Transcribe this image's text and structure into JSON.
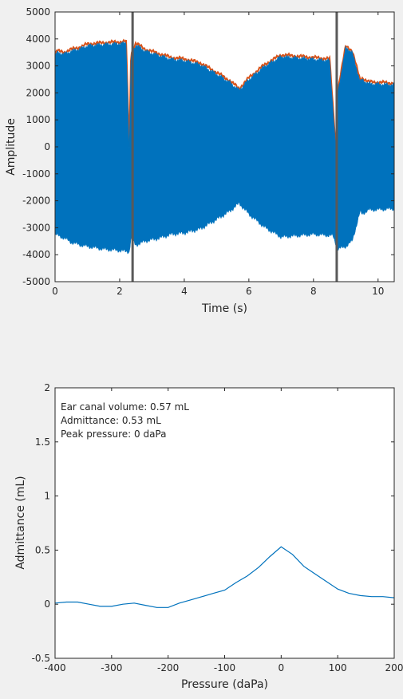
{
  "chart_data": [
    {
      "type": "line",
      "xlabel": "Time (s)",
      "ylabel": "Amplitude",
      "xlim": [
        0,
        10.5
      ],
      "ylim": [
        -5000,
        5000
      ],
      "xticks": [
        0,
        2,
        4,
        6,
        8,
        10
      ],
      "yticks": [
        -5000,
        -4000,
        -3000,
        -2000,
        -1000,
        0,
        1000,
        2000,
        3000,
        4000,
        5000
      ],
      "grid": false,
      "series": [
        {
          "color": "#D95319",
          "description": "envelope trace (orange)",
          "upper": [
            [
              0,
              3300
            ],
            [
              0.05,
              3500
            ],
            [
              0.3,
              3450
            ],
            [
              0.5,
              3550
            ],
            [
              0.8,
              3650
            ],
            [
              1.0,
              3750
            ],
            [
              1.5,
              3800
            ],
            [
              2.0,
              3830
            ],
            [
              2.2,
              3850
            ],
            [
              2.3,
              -200
            ],
            [
              2.35,
              3400
            ],
            [
              2.5,
              3780
            ],
            [
              2.8,
              3550
            ],
            [
              3.2,
              3400
            ],
            [
              3.6,
              3250
            ],
            [
              4.0,
              3200
            ],
            [
              4.5,
              3050
            ],
            [
              5.0,
              2700
            ],
            [
              5.4,
              2400
            ],
            [
              5.7,
              2100
            ],
            [
              6.0,
              2500
            ],
            [
              6.5,
              3000
            ],
            [
              7.0,
              3350
            ],
            [
              7.5,
              3300
            ],
            [
              8.0,
              3250
            ],
            [
              8.5,
              3200
            ],
            [
              8.7,
              -200
            ],
            [
              8.75,
              2000
            ],
            [
              9.0,
              3700
            ],
            [
              9.2,
              3500
            ],
            [
              9.45,
              2400
            ],
            [
              9.5,
              2500
            ],
            [
              9.7,
              2350
            ],
            [
              10.5,
              2300
            ]
          ],
          "lower": [
            [
              0,
              -3250
            ],
            [
              0.3,
              -3400
            ],
            [
              0.5,
              -3550
            ],
            [
              0.8,
              -3650
            ],
            [
              1.0,
              -3700
            ],
            [
              1.5,
              -3800
            ],
            [
              2.0,
              -3850
            ],
            [
              2.3,
              -3900
            ],
            [
              2.35,
              -3400
            ],
            [
              2.5,
              -3650
            ],
            [
              2.8,
              -3500
            ],
            [
              3.2,
              -3400
            ],
            [
              3.6,
              -3250
            ],
            [
              4.0,
              -3200
            ],
            [
              4.5,
              -3050
            ],
            [
              5.0,
              -2700
            ],
            [
              5.4,
              -2400
            ],
            [
              5.7,
              -2100
            ],
            [
              6.0,
              -2500
            ],
            [
              6.5,
              -3000
            ],
            [
              7.0,
              -3350
            ],
            [
              7.5,
              -3300
            ],
            [
              8.0,
              -3250
            ],
            [
              8.6,
              -3300
            ],
            [
              8.75,
              -3800
            ],
            [
              9.0,
              -3700
            ],
            [
              9.2,
              -3500
            ],
            [
              9.45,
              -2400
            ],
            [
              9.5,
              -2500
            ],
            [
              9.7,
              -2350
            ],
            [
              10.5,
              -2300
            ]
          ]
        },
        {
          "color": "#0072BD",
          "description": "signal (blue)"
        }
      ],
      "markers": [
        {
          "x": 2.4,
          "color": "#595959"
        },
        {
          "x": 8.72,
          "color": "#595959"
        }
      ]
    },
    {
      "type": "line",
      "xlabel": "Pressure (daPa)",
      "ylabel": "Admittance (mL)",
      "xlim": [
        -400,
        200
      ],
      "ylim": [
        -0.5,
        2
      ],
      "xticks": [
        -400,
        -300,
        -200,
        -100,
        0,
        100,
        200
      ],
      "yticks": [
        -0.5,
        0,
        0.5,
        1,
        1.5,
        2
      ],
      "grid": false,
      "annotations": [
        "Ear canal volume: 0.57 mL",
        "Admittance: 0.53 mL",
        "Peak pressure: 0 daPa"
      ],
      "series": [
        {
          "color": "#0072BD",
          "x": [
            -400,
            -380,
            -360,
            -340,
            -320,
            -300,
            -280,
            -260,
            -240,
            -220,
            -200,
            -180,
            -160,
            -140,
            -120,
            -100,
            -80,
            -60,
            -40,
            -20,
            0,
            20,
            40,
            60,
            80,
            100,
            120,
            140,
            160,
            180,
            200
          ],
          "y": [
            0.01,
            0.02,
            0.02,
            0.0,
            -0.02,
            -0.02,
            0.0,
            0.01,
            -0.01,
            -0.03,
            -0.03,
            0.01,
            0.04,
            0.07,
            0.1,
            0.13,
            0.2,
            0.26,
            0.34,
            0.44,
            0.53,
            0.46,
            0.35,
            0.28,
            0.21,
            0.14,
            0.1,
            0.08,
            0.07,
            0.07,
            0.06
          ]
        }
      ]
    }
  ]
}
